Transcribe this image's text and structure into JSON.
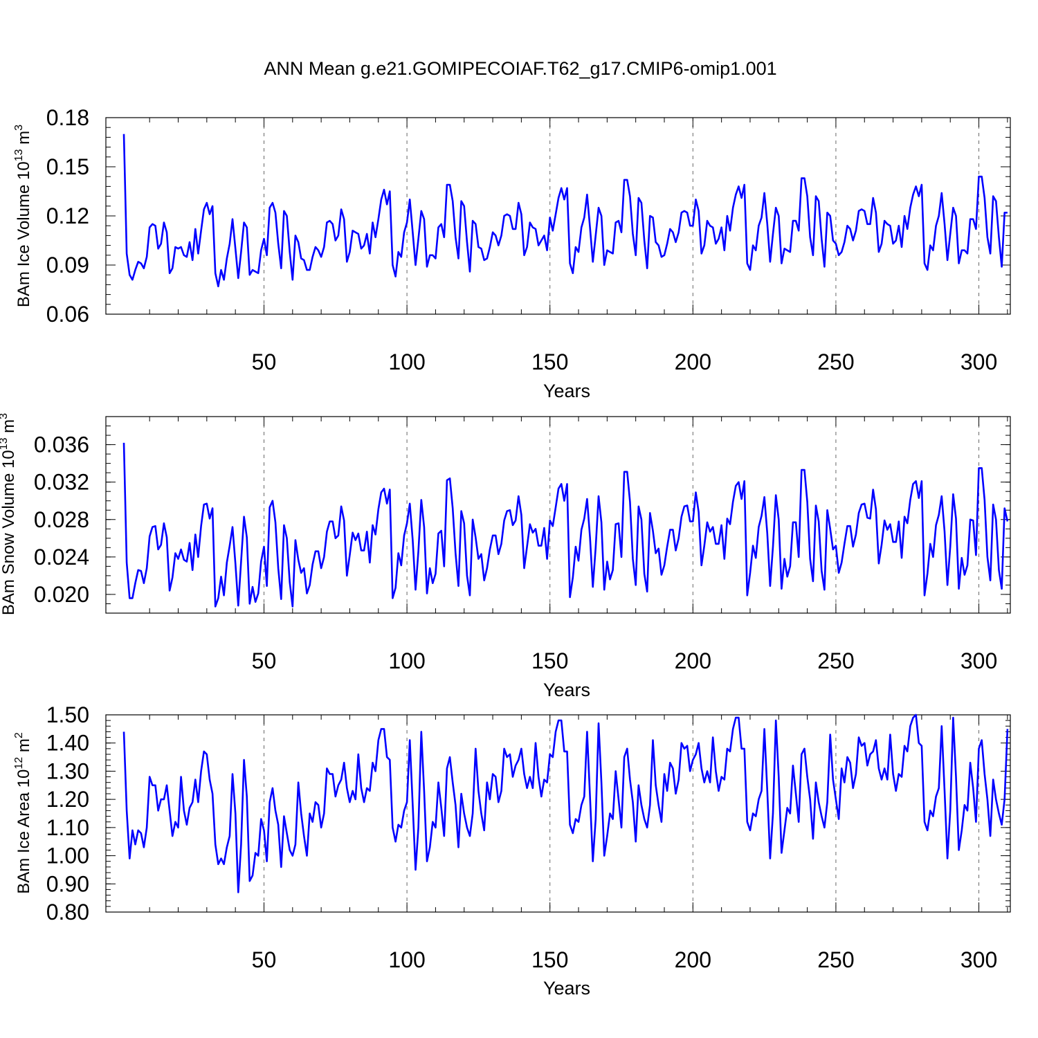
{
  "title": "ANN Mean g.e21.GOMIPECOIAF.T62_g17.CMIP6-omip1.001",
  "line_color": "#0000ff",
  "chart_data": [
    {
      "type": "line",
      "ylabel_main": "BAm Ice Volume 10",
      "ylabel_exp": "13",
      "ylabel_unit": "m",
      "ylabel_unit_exp": "3",
      "xlabel": "Years",
      "xlim": [
        1,
        311
      ],
      "ylim": [
        0.06,
        0.18
      ],
      "xticks": [
        50,
        100,
        150,
        200,
        250,
        300
      ],
      "xtick_labels": [
        "50",
        "100",
        "150",
        "200",
        "250",
        "300"
      ],
      "yticks": [
        0.06,
        0.09,
        0.12,
        0.15,
        0.18
      ],
      "ytick_labels": [
        "0.06",
        "0.09",
        "0.12",
        "0.15",
        "0.18"
      ],
      "yminor_step": 0.006,
      "x_start": 1,
      "values": [
        0.17,
        0.097,
        0.084,
        0.081,
        0.087,
        0.092,
        0.091,
        0.088,
        0.095,
        0.113,
        0.115,
        0.114,
        0.1,
        0.103,
        0.116,
        0.11,
        0.085,
        0.088,
        0.101,
        0.1,
        0.101,
        0.096,
        0.095,
        0.104,
        0.093,
        0.112,
        0.097,
        0.111,
        0.124,
        0.128,
        0.121,
        0.126,
        0.085,
        0.077,
        0.087,
        0.081,
        0.094,
        0.103,
        0.118,
        0.1,
        0.082,
        0.098,
        0.116,
        0.113,
        0.084,
        0.087,
        0.086,
        0.085,
        0.099,
        0.106,
        0.096,
        0.125,
        0.128,
        0.122,
        0.103,
        0.088,
        0.123,
        0.12,
        0.098,
        0.081,
        0.108,
        0.104,
        0.094,
        0.093,
        0.087,
        0.087,
        0.095,
        0.101,
        0.099,
        0.095,
        0.101,
        0.116,
        0.117,
        0.115,
        0.105,
        0.108,
        0.124,
        0.118,
        0.092,
        0.098,
        0.111,
        0.11,
        0.109,
        0.1,
        0.102,
        0.109,
        0.097,
        0.116,
        0.107,
        0.118,
        0.13,
        0.136,
        0.127,
        0.135,
        0.09,
        0.083,
        0.098,
        0.095,
        0.11,
        0.116,
        0.13,
        0.11,
        0.09,
        0.106,
        0.123,
        0.118,
        0.089,
        0.096,
        0.096,
        0.094,
        0.113,
        0.115,
        0.107,
        0.139,
        0.139,
        0.129,
        0.107,
        0.094,
        0.129,
        0.126,
        0.104,
        0.086,
        0.117,
        0.115,
        0.101,
        0.1,
        0.093,
        0.094,
        0.101,
        0.11,
        0.108,
        0.102,
        0.108,
        0.12,
        0.121,
        0.12,
        0.112,
        0.112,
        0.128,
        0.121,
        0.096,
        0.101,
        0.116,
        0.113,
        0.112,
        0.102,
        0.105,
        0.108,
        0.099,
        0.119,
        0.111,
        0.121,
        0.131,
        0.137,
        0.13,
        0.137,
        0.091,
        0.085,
        0.101,
        0.098,
        0.113,
        0.119,
        0.133,
        0.113,
        0.092,
        0.108,
        0.125,
        0.12,
        0.09,
        0.099,
        0.098,
        0.097,
        0.116,
        0.117,
        0.11,
        0.142,
        0.142,
        0.132,
        0.109,
        0.096,
        0.131,
        0.128,
        0.105,
        0.088,
        0.12,
        0.119,
        0.104,
        0.102,
        0.095,
        0.096,
        0.103,
        0.112,
        0.11,
        0.104,
        0.11,
        0.122,
        0.123,
        0.122,
        0.114,
        0.114,
        0.13,
        0.123,
        0.097,
        0.102,
        0.117,
        0.114,
        0.113,
        0.103,
        0.106,
        0.113,
        0.099,
        0.12,
        0.111,
        0.125,
        0.133,
        0.138,
        0.131,
        0.139,
        0.091,
        0.087,
        0.102,
        0.099,
        0.114,
        0.119,
        0.134,
        0.115,
        0.092,
        0.109,
        0.125,
        0.12,
        0.091,
        0.1,
        0.099,
        0.098,
        0.117,
        0.117,
        0.111,
        0.143,
        0.143,
        0.132,
        0.107,
        0.096,
        0.132,
        0.129,
        0.106,
        0.089,
        0.122,
        0.12,
        0.105,
        0.103,
        0.096,
        0.098,
        0.104,
        0.114,
        0.112,
        0.105,
        0.111,
        0.123,
        0.124,
        0.123,
        0.115,
        0.115,
        0.131,
        0.122,
        0.098,
        0.103,
        0.117,
        0.115,
        0.114,
        0.103,
        0.105,
        0.114,
        0.101,
        0.12,
        0.112,
        0.125,
        0.133,
        0.138,
        0.132,
        0.139,
        0.091,
        0.087,
        0.102,
        0.099,
        0.114,
        0.12,
        0.134,
        0.115,
        0.093,
        0.109,
        0.125,
        0.12,
        0.091,
        0.099,
        0.099,
        0.097,
        0.118,
        0.118,
        0.112,
        0.144,
        0.144,
        0.131,
        0.107,
        0.097,
        0.132,
        0.129,
        0.107,
        0.089,
        0.122,
        0.122
      ]
    },
    {
      "type": "line",
      "ylabel_main": "BAm Snow Volume 10",
      "ylabel_exp": "13",
      "ylabel_unit": "m",
      "ylabel_unit_exp": "3",
      "xlabel": "Years",
      "xlim": [
        1,
        311
      ],
      "ylim": [
        0.018,
        0.039
      ],
      "xticks": [
        50,
        100,
        150,
        200,
        250,
        300
      ],
      "xtick_labels": [
        "50",
        "100",
        "150",
        "200",
        "250",
        "300"
      ],
      "yticks": [
        0.02,
        0.024,
        0.028,
        0.032,
        0.036
      ],
      "ytick_labels": [
        "0.020",
        "0.024",
        "0.028",
        "0.032",
        "0.036"
      ],
      "yminor_step": 0.001,
      "x_start": 1,
      "values": [
        0.0362,
        0.0234,
        0.0196,
        0.0196,
        0.0212,
        0.0226,
        0.0225,
        0.0212,
        0.0228,
        0.0262,
        0.0272,
        0.0273,
        0.0248,
        0.0253,
        0.0276,
        0.0261,
        0.0204,
        0.0218,
        0.0244,
        0.0238,
        0.0248,
        0.0237,
        0.0235,
        0.0255,
        0.0226,
        0.0264,
        0.024,
        0.0273,
        0.0296,
        0.0297,
        0.0281,
        0.0292,
        0.0187,
        0.0196,
        0.0219,
        0.0199,
        0.0234,
        0.0252,
        0.0272,
        0.0233,
        0.0188,
        0.0235,
        0.0283,
        0.0261,
        0.019,
        0.0208,
        0.0192,
        0.0201,
        0.0235,
        0.0251,
        0.0209,
        0.0293,
        0.03,
        0.0277,
        0.0228,
        0.0195,
        0.0274,
        0.026,
        0.0213,
        0.0187,
        0.0258,
        0.0237,
        0.0223,
        0.0228,
        0.0201,
        0.021,
        0.0232,
        0.0246,
        0.0246,
        0.0228,
        0.024,
        0.0267,
        0.0278,
        0.0278,
        0.026,
        0.0263,
        0.0294,
        0.0279,
        0.022,
        0.0242,
        0.0266,
        0.0258,
        0.0265,
        0.0247,
        0.0247,
        0.0267,
        0.0234,
        0.0274,
        0.0264,
        0.0291,
        0.0309,
        0.0313,
        0.0297,
        0.0312,
        0.0196,
        0.0207,
        0.0244,
        0.0231,
        0.0263,
        0.0276,
        0.0297,
        0.0258,
        0.0205,
        0.0246,
        0.0301,
        0.0272,
        0.0201,
        0.0228,
        0.0212,
        0.0222,
        0.0265,
        0.0268,
        0.023,
        0.0322,
        0.0324,
        0.0292,
        0.0244,
        0.0209,
        0.0289,
        0.0276,
        0.022,
        0.0199,
        0.028,
        0.0261,
        0.0238,
        0.0243,
        0.0215,
        0.0228,
        0.0248,
        0.0263,
        0.0263,
        0.0243,
        0.0254,
        0.0279,
        0.0289,
        0.029,
        0.0274,
        0.0279,
        0.0305,
        0.0285,
        0.0228,
        0.0251,
        0.0275,
        0.0266,
        0.027,
        0.0252,
        0.0252,
        0.0271,
        0.0238,
        0.0279,
        0.0273,
        0.0293,
        0.0313,
        0.0318,
        0.03,
        0.0318,
        0.0197,
        0.0218,
        0.0251,
        0.0236,
        0.0269,
        0.0281,
        0.0302,
        0.0261,
        0.0208,
        0.025,
        0.0305,
        0.0277,
        0.0205,
        0.0235,
        0.0216,
        0.0226,
        0.0275,
        0.0276,
        0.024,
        0.0331,
        0.0331,
        0.0299,
        0.0238,
        0.021,
        0.0294,
        0.028,
        0.0222,
        0.0203,
        0.0287,
        0.0268,
        0.0244,
        0.0249,
        0.0221,
        0.0231,
        0.0251,
        0.0269,
        0.0269,
        0.0247,
        0.026,
        0.0283,
        0.0294,
        0.0295,
        0.0278,
        0.0278,
        0.0309,
        0.0288,
        0.0231,
        0.0252,
        0.0277,
        0.0267,
        0.0272,
        0.0254,
        0.0254,
        0.0274,
        0.0238,
        0.0281,
        0.0275,
        0.0299,
        0.0316,
        0.032,
        0.0302,
        0.0321,
        0.0199,
        0.0223,
        0.0252,
        0.0239,
        0.0272,
        0.0284,
        0.0304,
        0.0265,
        0.0209,
        0.0251,
        0.0306,
        0.028,
        0.0206,
        0.0238,
        0.0219,
        0.023,
        0.0277,
        0.0277,
        0.024,
        0.0333,
        0.0333,
        0.0299,
        0.0238,
        0.0214,
        0.0295,
        0.0278,
        0.0225,
        0.0205,
        0.029,
        0.027,
        0.0248,
        0.0252,
        0.0223,
        0.0234,
        0.0254,
        0.0273,
        0.0273,
        0.0251,
        0.0264,
        0.0287,
        0.0296,
        0.0297,
        0.0282,
        0.0281,
        0.0312,
        0.0291,
        0.0233,
        0.0253,
        0.0279,
        0.0269,
        0.0275,
        0.0256,
        0.0256,
        0.0278,
        0.0239,
        0.0283,
        0.0276,
        0.0301,
        0.0318,
        0.0321,
        0.0303,
        0.0321,
        0.0199,
        0.0222,
        0.0254,
        0.024,
        0.0274,
        0.0285,
        0.0305,
        0.0267,
        0.021,
        0.0251,
        0.0307,
        0.0281,
        0.0206,
        0.0239,
        0.0221,
        0.0231,
        0.028,
        0.0279,
        0.0242,
        0.0335,
        0.0335,
        0.0301,
        0.024,
        0.0215,
        0.0296,
        0.028,
        0.0226,
        0.0206,
        0.0292,
        0.0278
      ]
    },
    {
      "type": "line",
      "ylabel_main": "BAm Ice Area 10",
      "ylabel_exp": "12",
      "ylabel_unit": "m",
      "ylabel_unit_exp": "2",
      "xlabel": "Years",
      "xlim": [
        1,
        311
      ],
      "ylim": [
        0.8,
        1.5
      ],
      "xticks": [
        50,
        100,
        150,
        200,
        250,
        300
      ],
      "xtick_labels": [
        "50",
        "100",
        "150",
        "200",
        "250",
        "300"
      ],
      "yticks": [
        0.8,
        0.9,
        1.0,
        1.1,
        1.2,
        1.3,
        1.4,
        1.5
      ],
      "ytick_labels": [
        "0.80",
        "0.90",
        "1.00",
        "1.10",
        "1.20",
        "1.30",
        "1.40",
        "1.50"
      ],
      "yminor_step": 0.02,
      "x_start": 1,
      "values": [
        1.44,
        1.16,
        0.99,
        1.09,
        1.04,
        1.09,
        1.08,
        1.03,
        1.1,
        1.28,
        1.25,
        1.25,
        1.16,
        1.2,
        1.2,
        1.25,
        1.16,
        1.07,
        1.12,
        1.1,
        1.28,
        1.16,
        1.11,
        1.17,
        1.19,
        1.27,
        1.19,
        1.3,
        1.37,
        1.36,
        1.27,
        1.22,
        1.04,
        0.97,
        0.99,
        0.97,
        1.03,
        1.07,
        1.29,
        1.15,
        0.87,
        1.04,
        1.34,
        1.21,
        0.91,
        0.93,
        1.01,
        1.0,
        1.13,
        1.09,
        0.98,
        1.19,
        1.24,
        1.16,
        1.11,
        0.96,
        1.14,
        1.08,
        1.02,
        1.0,
        1.04,
        1.26,
        1.15,
        1.07,
        1.0,
        1.15,
        1.12,
        1.19,
        1.18,
        1.1,
        1.15,
        1.31,
        1.29,
        1.29,
        1.21,
        1.25,
        1.27,
        1.33,
        1.24,
        1.19,
        1.23,
        1.2,
        1.36,
        1.24,
        1.19,
        1.24,
        1.23,
        1.33,
        1.3,
        1.41,
        1.45,
        1.45,
        1.35,
        1.34,
        1.1,
        1.05,
        1.11,
        1.1,
        1.16,
        1.19,
        1.41,
        1.18,
        0.95,
        1.1,
        1.44,
        1.23,
        0.98,
        1.03,
        1.12,
        1.1,
        1.26,
        1.17,
        1.07,
        1.31,
        1.35,
        1.26,
        1.18,
        1.03,
        1.22,
        1.15,
        1.1,
        1.07,
        1.15,
        1.38,
        1.23,
        1.15,
        1.09,
        1.26,
        1.2,
        1.29,
        1.28,
        1.19,
        1.23,
        1.38,
        1.35,
        1.36,
        1.28,
        1.32,
        1.34,
        1.38,
        1.29,
        1.24,
        1.28,
        1.24,
        1.4,
        1.28,
        1.21,
        1.27,
        1.26,
        1.36,
        1.35,
        1.44,
        1.48,
        1.48,
        1.37,
        1.37,
        1.11,
        1.08,
        1.13,
        1.12,
        1.18,
        1.21,
        1.44,
        1.21,
        0.98,
        1.13,
        1.47,
        1.26,
        1.0,
        1.07,
        1.15,
        1.13,
        1.3,
        1.2,
        1.1,
        1.35,
        1.38,
        1.27,
        1.19,
        1.05,
        1.25,
        1.18,
        1.13,
        1.1,
        1.18,
        1.41,
        1.25,
        1.18,
        1.12,
        1.29,
        1.23,
        1.33,
        1.31,
        1.22,
        1.27,
        1.4,
        1.38,
        1.39,
        1.3,
        1.34,
        1.36,
        1.4,
        1.31,
        1.26,
        1.3,
        1.26,
        1.42,
        1.3,
        1.23,
        1.28,
        1.27,
        1.38,
        1.37,
        1.45,
        1.49,
        1.49,
        1.38,
        1.38,
        1.12,
        1.09,
        1.15,
        1.14,
        1.2,
        1.23,
        1.45,
        1.23,
        0.99,
        1.15,
        1.48,
        1.28,
        1.01,
        1.09,
        1.17,
        1.15,
        1.32,
        1.22,
        1.12,
        1.36,
        1.38,
        1.28,
        1.2,
        1.06,
        1.26,
        1.19,
        1.14,
        1.1,
        1.19,
        1.43,
        1.27,
        1.2,
        1.13,
        1.31,
        1.26,
        1.35,
        1.33,
        1.24,
        1.29,
        1.42,
        1.39,
        1.4,
        1.32,
        1.36,
        1.37,
        1.41,
        1.31,
        1.27,
        1.31,
        1.27,
        1.43,
        1.29,
        1.23,
        1.29,
        1.28,
        1.39,
        1.37,
        1.46,
        1.49,
        1.5,
        1.4,
        1.39,
        1.12,
        1.09,
        1.16,
        1.14,
        1.21,
        1.24,
        1.46,
        1.23,
        0.99,
        1.16,
        1.49,
        1.28,
        1.02,
        1.09,
        1.18,
        1.16,
        1.33,
        1.24,
        1.12,
        1.38,
        1.41,
        1.29,
        1.2,
        1.07,
        1.27,
        1.2,
        1.15,
        1.11,
        1.2,
        1.45
      ]
    }
  ]
}
